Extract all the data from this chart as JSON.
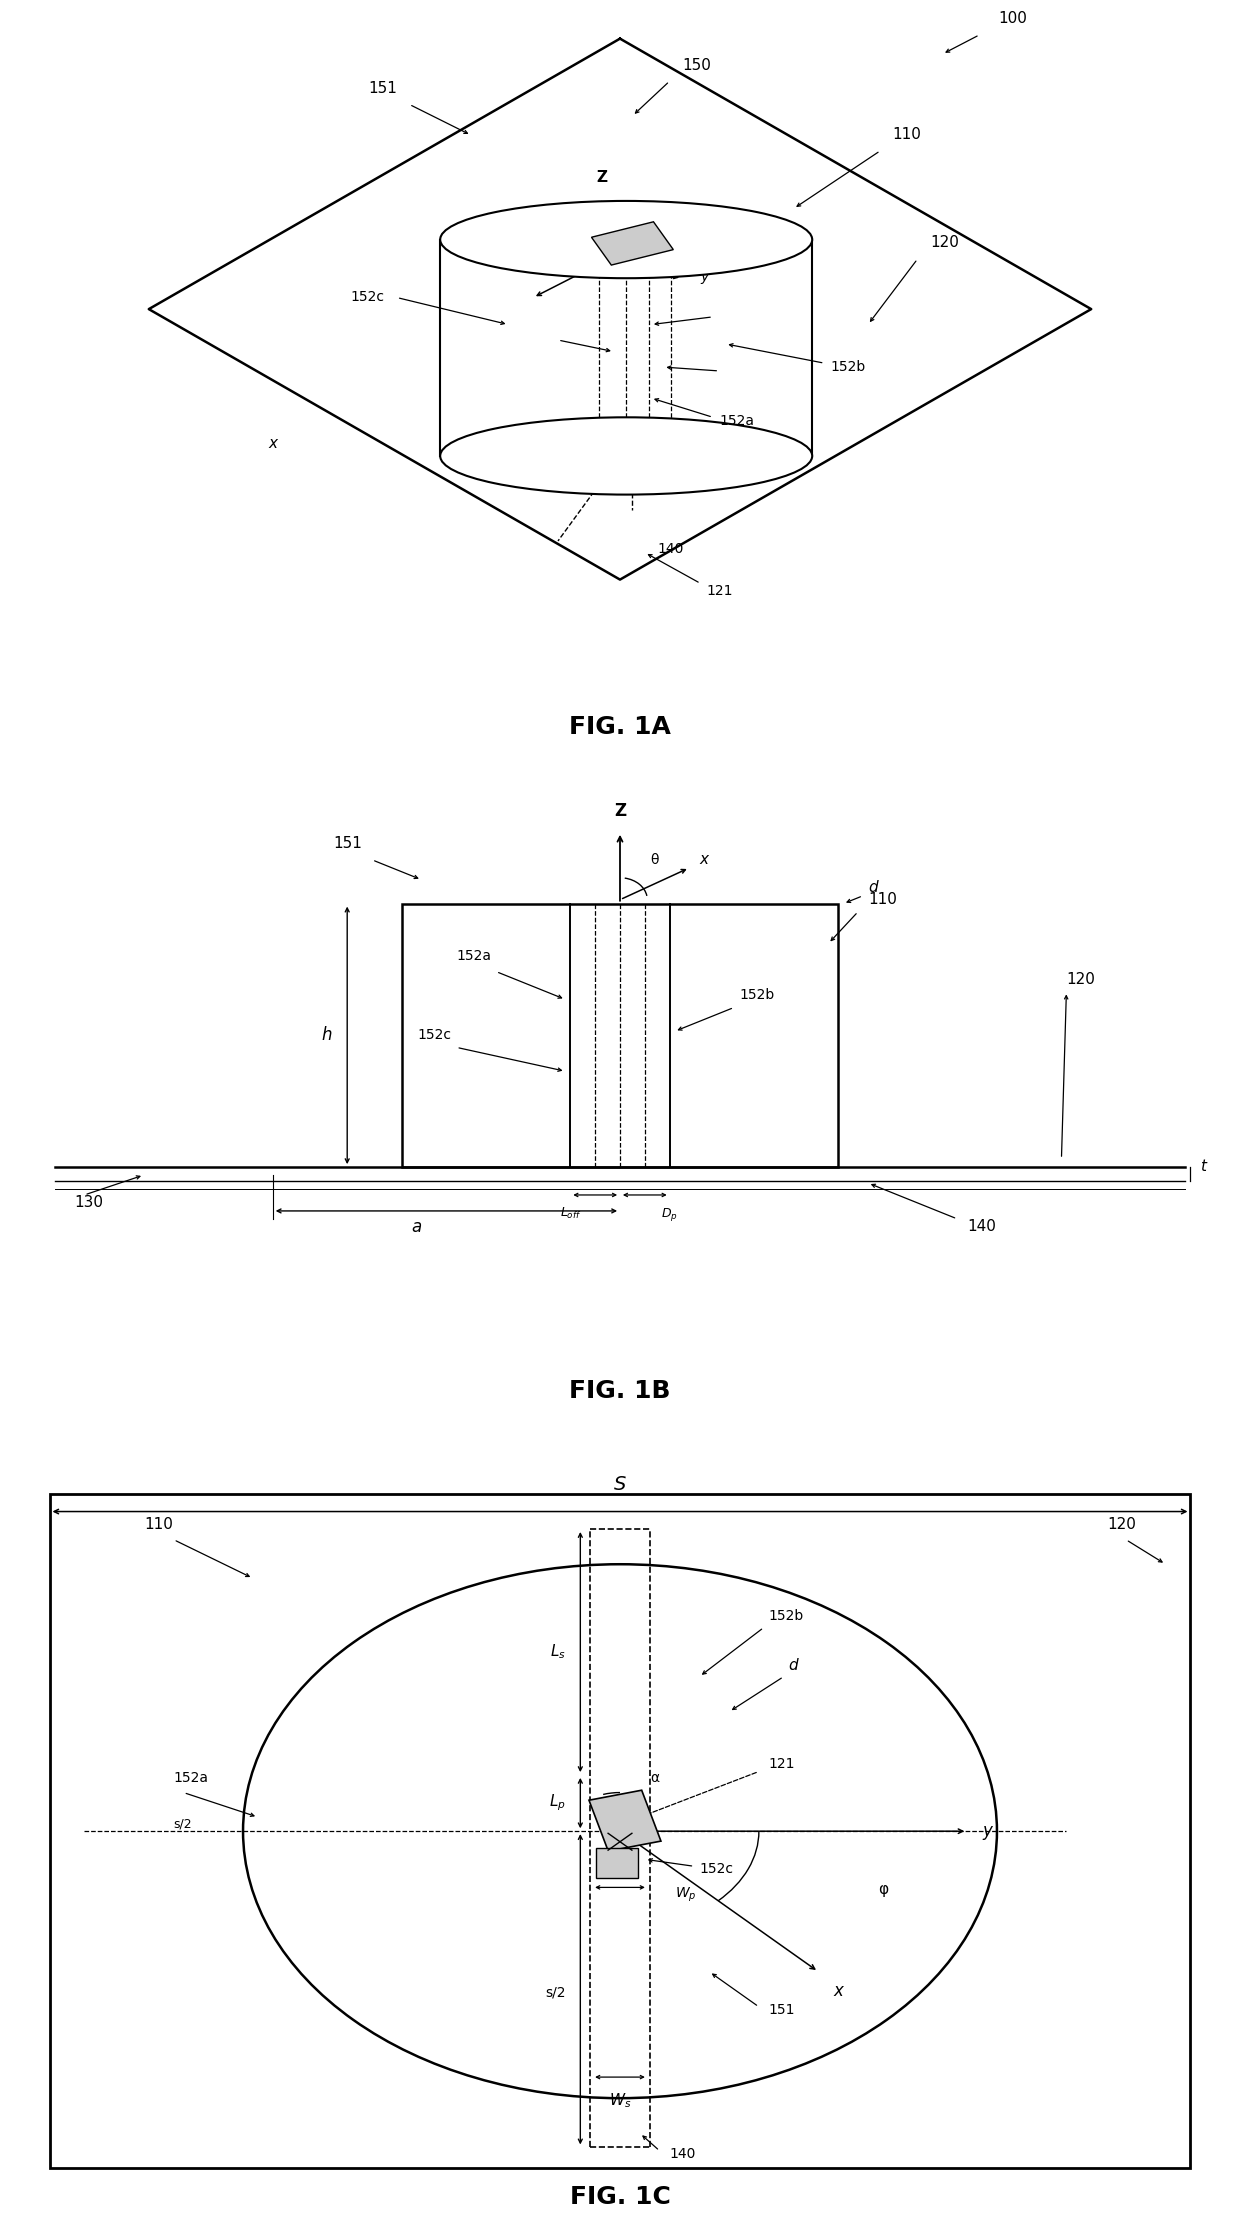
{
  "bg_color": "#ffffff",
  "line_color": "#000000",
  "fig_width": 12.4,
  "fig_height": 22.4,
  "fig1a_title": "FIG. 1A",
  "fig1b_title": "FIG. 1B",
  "fig1c_title": "FIG. 1C",
  "labels": {
    "100": "100",
    "110": "110",
    "120": "120",
    "121": "121",
    "130": "130",
    "140": "140",
    "150": "150",
    "151": "151",
    "152a": "152a",
    "152b": "152b",
    "152c": "152c",
    "h": "h",
    "a": "a",
    "d": "d",
    "t": "t",
    "Loff": "$L_{off}$",
    "Dp": "$D_p$",
    "S": "S",
    "Ls": "$L_s$",
    "Lp": "$L_p$",
    "Wp": "$W_p$",
    "Ws": "$W_s$",
    "s2": "s/2",
    "alpha": "α",
    "phi": "φ",
    "Z": "Z",
    "x": "x",
    "y": "y",
    "theta": "θ"
  }
}
